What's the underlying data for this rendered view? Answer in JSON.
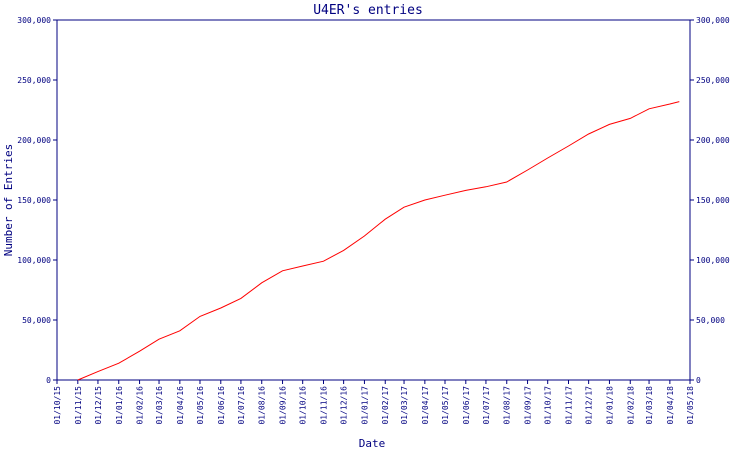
{
  "chart_data": {
    "type": "line",
    "title": "U4ER's entries",
    "xlabel": "Date",
    "ylabel": "Number of Entries",
    "x_ticks": [
      "01/10/15",
      "01/11/15",
      "01/12/15",
      "01/01/16",
      "01/02/16",
      "01/03/16",
      "01/04/16",
      "01/05/16",
      "01/06/16",
      "01/07/16",
      "01/08/16",
      "01/09/16",
      "01/10/16",
      "01/11/16",
      "01/12/16",
      "01/01/17",
      "01/02/17",
      "01/03/17",
      "01/04/17",
      "01/05/17",
      "01/06/17",
      "01/07/17",
      "01/08/17",
      "01/09/17",
      "01/10/17",
      "01/11/17",
      "01/12/17",
      "01/01/18",
      "01/02/18",
      "01/03/18",
      "01/04/18",
      "01/05/18"
    ],
    "y_ticks": [
      "0",
      "50,000",
      "100,000",
      "150,000",
      "200,000",
      "250,000",
      "300,000"
    ],
    "ylim": [
      0,
      300000
    ],
    "y_right_axis": true,
    "grid": false,
    "series": [
      {
        "color": "#ff0000",
        "x": [
          "01/11/15",
          "01/12/15",
          "01/01/16",
          "01/02/16",
          "01/03/16",
          "01/04/16",
          "01/05/16",
          "01/06/16",
          "01/07/16",
          "01/08/16",
          "01/09/16",
          "01/10/16",
          "01/11/16",
          "01/12/16",
          "01/01/17",
          "01/02/17",
          "01/03/17",
          "01/04/17",
          "01/05/17",
          "01/06/17",
          "01/07/17",
          "01/08/17",
          "01/09/17",
          "01/10/17",
          "01/11/17",
          "01/12/17",
          "01/01/18",
          "01/02/18",
          "01/03/18",
          "01/04/18",
          "15/04/18"
        ],
        "values": [
          0,
          7000,
          14000,
          24000,
          34000,
          41000,
          53000,
          60000,
          68000,
          81000,
          91000,
          95000,
          99000,
          108000,
          120000,
          134000,
          144000,
          150000,
          154000,
          158000,
          161000,
          165000,
          175000,
          185000,
          195000,
          205000,
          213000,
          218000,
          226000,
          230000,
          232000
        ]
      }
    ]
  },
  "colors": {
    "axis": "#000080",
    "line": "#ff0000",
    "background": "#ffffff"
  }
}
